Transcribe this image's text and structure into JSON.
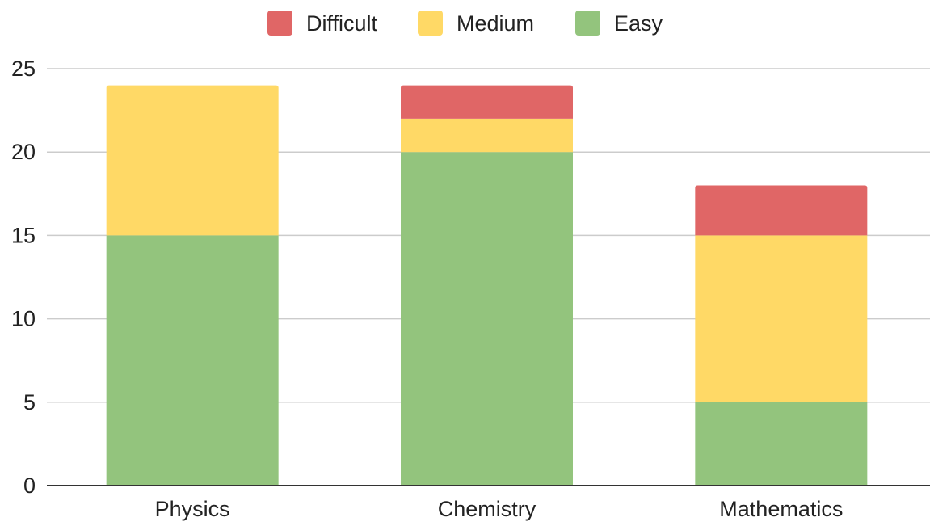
{
  "chart_data": {
    "type": "bar",
    "stacked": true,
    "categories": [
      "Physics",
      "Chemistry",
      "Mathematics"
    ],
    "series": [
      {
        "name": "Easy",
        "values": [
          15,
          20,
          5
        ],
        "color": "#93c47d"
      },
      {
        "name": "Medium",
        "values": [
          9,
          2,
          10
        ],
        "color": "#ffd966"
      },
      {
        "name": "Difficult",
        "values": [
          0,
          2,
          3
        ],
        "color": "#e06666"
      }
    ],
    "legend_order": [
      "Difficult",
      "Medium",
      "Easy"
    ],
    "legend_position": "top-center",
    "ylim": [
      0,
      25
    ],
    "yticks": [
      "0",
      "5",
      "10",
      "15",
      "20",
      "25"
    ],
    "grid": true,
    "title": "",
    "xlabel": "",
    "ylabel": ""
  }
}
